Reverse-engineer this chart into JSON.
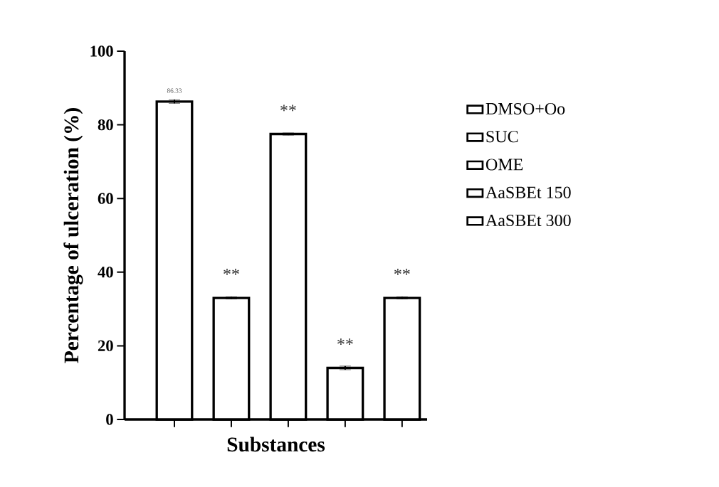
{
  "chart_data": {
    "type": "bar",
    "xlabel": "Substances",
    "ylabel": "Percentage of ulceration (%)",
    "categories": [
      null,
      null,
      null,
      null,
      null
    ],
    "series": [
      {
        "name": "DMSO+Oo",
        "color": "#000000",
        "values": [
          86.33,
          null,
          null,
          null,
          null
        ],
        "errors": [
          0.5,
          null,
          null,
          null,
          null
        ],
        "value_labels": [
          "86.33",
          null,
          null,
          null,
          null
        ]
      },
      {
        "name": "SUC",
        "color": "#000000",
        "values": [
          null,
          33,
          null,
          null,
          null
        ],
        "errors": [
          null,
          0.3,
          null,
          null,
          null
        ]
      },
      {
        "name": "OME",
        "color": "#000000",
        "values": [
          null,
          null,
          77.5,
          null,
          null
        ],
        "errors": [
          null,
          null,
          0.3,
          null,
          null
        ]
      },
      {
        "name": "AaSBEt 150",
        "color": "#000000",
        "values": [
          null,
          null,
          null,
          14,
          null
        ],
        "errors": [
          null,
          null,
          null,
          0.5,
          null
        ]
      },
      {
        "name": "AaSBEt 300",
        "color": "#000000",
        "values": [
          null,
          null,
          null,
          null,
          33
        ],
        "errors": [
          null,
          null,
          null,
          null,
          0.3
        ]
      }
    ],
    "annotations": [
      "**",
      "**",
      "**",
      "**"
    ],
    "ylim": [
      0,
      100
    ],
    "yticks": [
      0,
      20,
      40,
      60,
      80,
      100
    ],
    "legend": "right",
    "grid": false
  }
}
